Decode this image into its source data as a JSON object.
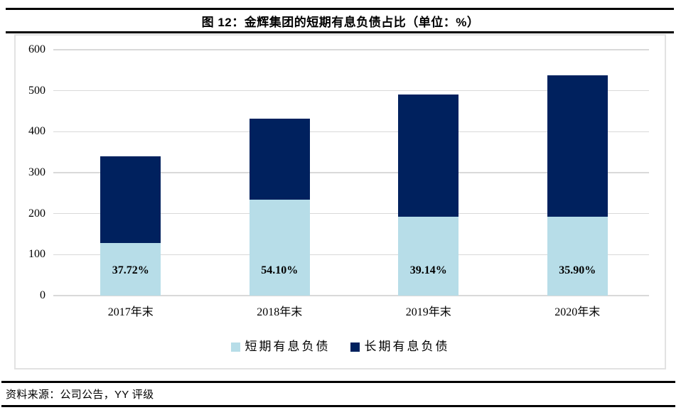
{
  "header": {
    "title": "图 12：金辉集团的短期有息负债占比（单位：%）"
  },
  "footer": {
    "source": "资料来源：公司公告，YY 评级"
  },
  "colors": {
    "short_term": "#b7dde8",
    "long_term": "#00215e",
    "gridline": "#d9d9d9",
    "panel_border": "#e2e2e2",
    "rule": "#000000"
  },
  "chart_data": {
    "type": "bar",
    "stacked": true,
    "title": "图 12：金辉集团的短期有息负债占比（单位：%）",
    "categories": [
      "2017年末",
      "2018年末",
      "2019年末",
      "2020年末"
    ],
    "series": [
      {
        "name": "短期有息负债",
        "color": "#b7dde8",
        "values": [
          128.2,
          233.7,
          191.8,
          193.1
        ]
      },
      {
        "name": "长期有息负债",
        "color": "#00215e",
        "values": [
          211.8,
          198.3,
          298.2,
          344.9
        ]
      }
    ],
    "totals": [
      340,
      432,
      490,
      538
    ],
    "bar_labels": [
      "37.72%",
      "54.10%",
      "39.14%",
      "35.90%"
    ],
    "ylim": [
      0,
      600
    ],
    "yticks": [
      0,
      100,
      200,
      300,
      400,
      500,
      600
    ],
    "xlabel": "",
    "ylabel": "",
    "grid": true,
    "legend_position": "bottom"
  }
}
